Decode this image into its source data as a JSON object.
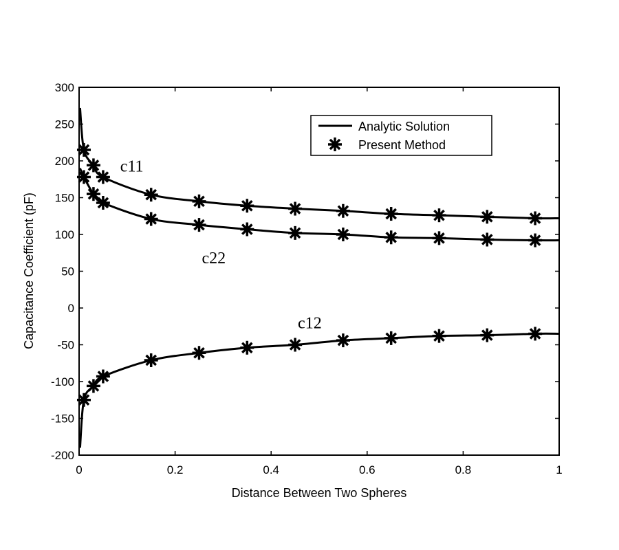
{
  "chart_data": {
    "type": "line",
    "title": "",
    "xlabel": "Distance Between Two Spheres",
    "ylabel": "Capacitance Coefficient (pF)",
    "xlim": [
      0,
      1
    ],
    "ylim": [
      -200,
      300
    ],
    "xticks": [
      0,
      0.2,
      0.4,
      0.6,
      0.8,
      1
    ],
    "xtick_labels": [
      "0",
      "0.2",
      "0.4",
      "0.6",
      "0.8",
      "1"
    ],
    "yticks": [
      -200,
      -150,
      -100,
      -50,
      0,
      50,
      100,
      150,
      200,
      250,
      300
    ],
    "ytick_labels": [
      "-200",
      "-150",
      "-100",
      "-50",
      "0",
      "50",
      "100",
      "150",
      "200",
      "250",
      "300"
    ],
    "grid": false,
    "legend": {
      "placement": "top-right",
      "entries": [
        "Analytic Solution",
        "Present Method"
      ]
    },
    "marker_x": [
      0.01,
      0.03,
      0.05,
      0.15,
      0.25,
      0.35,
      0.45,
      0.55,
      0.65,
      0.75,
      0.85,
      0.95
    ],
    "series": [
      {
        "name": "c11",
        "curve_x": [
          0.002,
          0.01,
          0.03,
          0.05,
          0.15,
          0.25,
          0.35,
          0.45,
          0.55,
          0.65,
          0.75,
          0.85,
          0.95,
          1.0
        ],
        "curve_y": [
          272,
          215,
          194,
          178,
          154,
          145,
          139,
          135,
          132,
          128,
          126,
          124,
          122,
          122
        ],
        "marker_y": [
          215,
          194,
          178,
          154,
          145,
          139,
          135,
          132,
          128,
          126,
          124,
          122
        ]
      },
      {
        "name": "c22",
        "curve_x": [
          0.002,
          0.01,
          0.03,
          0.05,
          0.15,
          0.25,
          0.35,
          0.45,
          0.55,
          0.65,
          0.75,
          0.85,
          0.95,
          1.0
        ],
        "curve_y": [
          190,
          178,
          155,
          143,
          121,
          113,
          107,
          102,
          100,
          96,
          95,
          93,
          92,
          92
        ],
        "marker_y": [
          178,
          155,
          143,
          121,
          113,
          107,
          102,
          100,
          96,
          95,
          93,
          92
        ]
      },
      {
        "name": "c12",
        "curve_x": [
          0.002,
          0.01,
          0.03,
          0.05,
          0.15,
          0.25,
          0.35,
          0.45,
          0.55,
          0.65,
          0.75,
          0.85,
          0.95,
          1.0
        ],
        "curve_y": [
          -190,
          -125,
          -106,
          -93,
          -71,
          -61,
          -54,
          -50,
          -44,
          -41,
          -38,
          -37,
          -35,
          -35
        ],
        "marker_y": [
          -125,
          -106,
          -93,
          -71,
          -61,
          -54,
          -50,
          -44,
          -41,
          -38,
          -37,
          -35
        ]
      }
    ],
    "annotations": [
      {
        "text": "c11",
        "x": 0.1,
        "y": 193
      },
      {
        "text": "c22",
        "x": 0.27,
        "y": 68
      },
      {
        "text": "c12",
        "x": 0.47,
        "y": -20
      }
    ]
  }
}
